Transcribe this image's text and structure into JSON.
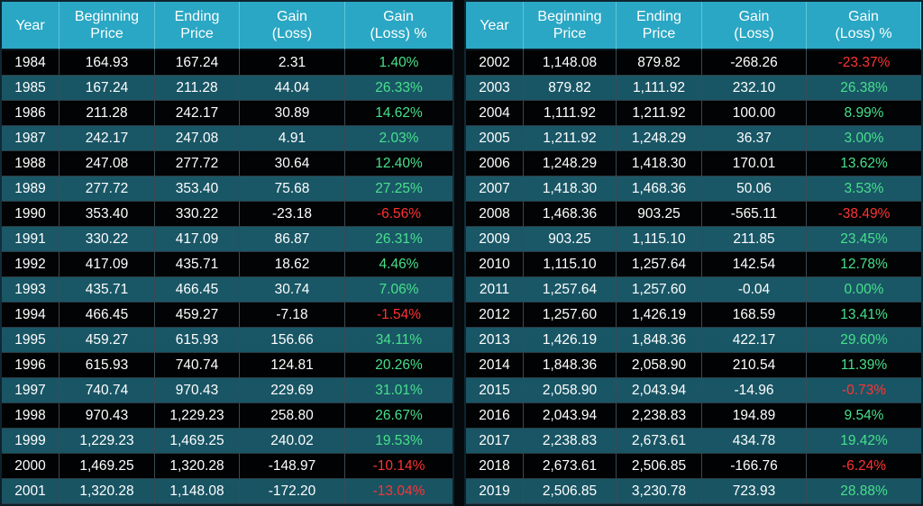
{
  "headers": [
    "Year",
    "Beginning\nPrice",
    "Ending\nPrice",
    "Gain\n(Loss)",
    "Gain\n(Loss) %"
  ],
  "colors": {
    "header_bg": "#2aa7c4",
    "positive": "#47e08c",
    "negative": "#ff3333",
    "dark_row": "#000000",
    "light_row": "#1c6070"
  },
  "left_rows": [
    {
      "year": "1984",
      "begin": "164.93",
      "end": "167.24",
      "gain": "2.31",
      "pct": "1.40%"
    },
    {
      "year": "1985",
      "begin": "167.24",
      "end": "211.28",
      "gain": "44.04",
      "pct": "26.33%"
    },
    {
      "year": "1986",
      "begin": "211.28",
      "end": "242.17",
      "gain": "30.89",
      "pct": "14.62%"
    },
    {
      "year": "1987",
      "begin": "242.17",
      "end": "247.08",
      "gain": "4.91",
      "pct": "2.03%"
    },
    {
      "year": "1988",
      "begin": "247.08",
      "end": "277.72",
      "gain": "30.64",
      "pct": "12.40%"
    },
    {
      "year": "1989",
      "begin": "277.72",
      "end": "353.40",
      "gain": "75.68",
      "pct": "27.25%"
    },
    {
      "year": "1990",
      "begin": "353.40",
      "end": "330.22",
      "gain": "-23.18",
      "pct": "-6.56%"
    },
    {
      "year": "1991",
      "begin": "330.22",
      "end": "417.09",
      "gain": "86.87",
      "pct": "26.31%"
    },
    {
      "year": "1992",
      "begin": "417.09",
      "end": "435.71",
      "gain": "18.62",
      "pct": "4.46%"
    },
    {
      "year": "1993",
      "begin": "435.71",
      "end": "466.45",
      "gain": "30.74",
      "pct": "7.06%"
    },
    {
      "year": "1994",
      "begin": "466.45",
      "end": "459.27",
      "gain": "-7.18",
      "pct": "-1.54%"
    },
    {
      "year": "1995",
      "begin": "459.27",
      "end": "615.93",
      "gain": "156.66",
      "pct": "34.11%"
    },
    {
      "year": "1996",
      "begin": "615.93",
      "end": "740.74",
      "gain": "124.81",
      "pct": "20.26%"
    },
    {
      "year": "1997",
      "begin": "740.74",
      "end": "970.43",
      "gain": "229.69",
      "pct": "31.01%"
    },
    {
      "year": "1998",
      "begin": "970.43",
      "end": "1,229.23",
      "gain": "258.80",
      "pct": "26.67%"
    },
    {
      "year": "1999",
      "begin": "1,229.23",
      "end": "1,469.25",
      "gain": "240.02",
      "pct": "19.53%"
    },
    {
      "year": "2000",
      "begin": "1,469.25",
      "end": "1,320.28",
      "gain": "-148.97",
      "pct": "-10.14%"
    },
    {
      "year": "2001",
      "begin": "1,320.28",
      "end": "1,148.08",
      "gain": "-172.20",
      "pct": "-13.04%"
    }
  ],
  "right_rows": [
    {
      "year": "2002",
      "begin": "1,148.08",
      "end": "879.82",
      "gain": "-268.26",
      "pct": "-23.37%"
    },
    {
      "year": "2003",
      "begin": "879.82",
      "end": "1,111.92",
      "gain": "232.10",
      "pct": "26.38%"
    },
    {
      "year": "2004",
      "begin": "1,111.92",
      "end": "1,211.92",
      "gain": "100.00",
      "pct": "8.99%"
    },
    {
      "year": "2005",
      "begin": "1,211.92",
      "end": "1,248.29",
      "gain": "36.37",
      "pct": "3.00%"
    },
    {
      "year": "2006",
      "begin": "1,248.29",
      "end": "1,418.30",
      "gain": "170.01",
      "pct": "13.62%"
    },
    {
      "year": "2007",
      "begin": "1,418.30",
      "end": "1,468.36",
      "gain": "50.06",
      "pct": "3.53%"
    },
    {
      "year": "2008",
      "begin": "1,468.36",
      "end": "903.25",
      "gain": "-565.11",
      "pct": "-38.49%"
    },
    {
      "year": "2009",
      "begin": "903.25",
      "end": "1,115.10",
      "gain": "211.85",
      "pct": "23.45%"
    },
    {
      "year": "2010",
      "begin": "1,115.10",
      "end": "1,257.64",
      "gain": "142.54",
      "pct": "12.78%"
    },
    {
      "year": "2011",
      "begin": "1,257.64",
      "end": "1,257.60",
      "gain": "-0.04",
      "pct": "0.00%"
    },
    {
      "year": "2012",
      "begin": "1,257.60",
      "end": "1,426.19",
      "gain": "168.59",
      "pct": "13.41%"
    },
    {
      "year": "2013",
      "begin": "1,426.19",
      "end": "1,848.36",
      "gain": "422.17",
      "pct": "29.60%"
    },
    {
      "year": "2014",
      "begin": "1,848.36",
      "end": "2,058.90",
      "gain": "210.54",
      "pct": "11.39%"
    },
    {
      "year": "2015",
      "begin": "2,058.90",
      "end": "2,043.94",
      "gain": "-14.96",
      "pct": "-0.73%"
    },
    {
      "year": "2016",
      "begin": "2,043.94",
      "end": "2,238.83",
      "gain": "194.89",
      "pct": "9.54%"
    },
    {
      "year": "2017",
      "begin": "2,238.83",
      "end": "2,673.61",
      "gain": "434.78",
      "pct": "19.42%"
    },
    {
      "year": "2018",
      "begin": "2,673.61",
      "end": "2,506.85",
      "gain": "-166.76",
      "pct": "-6.24%"
    },
    {
      "year": "2019",
      "begin": "2,506.85",
      "end": "3,230.78",
      "gain": "723.93",
      "pct": "28.88%"
    }
  ]
}
